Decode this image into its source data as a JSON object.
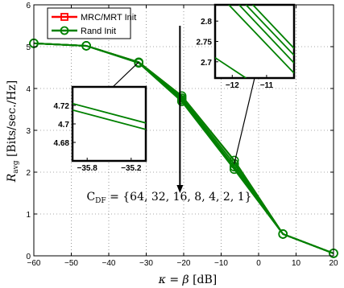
{
  "chart_data": {
    "type": "line",
    "xlabel": "κ = β  [dB]",
    "ylabel": "R_avg  [Bits/sec./Hz]",
    "xlim": [
      -60,
      20
    ],
    "ylim": [
      0,
      6
    ],
    "xticks": [
      -60,
      -50,
      -40,
      -30,
      -20,
      -10,
      0,
      10,
      20
    ],
    "yticks": [
      0,
      1,
      2,
      3,
      4,
      5,
      6
    ],
    "grid": true,
    "legend_position": "top-left",
    "legend": [
      {
        "label": "MRC/MRT Init",
        "color": "#ff0000",
        "marker": "square"
      },
      {
        "label": "Rand Init",
        "color": "#008000",
        "marker": "circle"
      }
    ],
    "x": [
      -60,
      -46,
      -32,
      -20.5,
      -6.5,
      6.5,
      20
    ],
    "series": [
      {
        "name": "MRC/MRT Init",
        "color": "#ff0000",
        "marker": "square",
        "values": [
          5.08,
          5.02,
          4.63,
          3.82,
          2.28,
          0.52,
          0.06
        ]
      },
      {
        "name": "Rand Init",
        "color": "#008000",
        "marker": "circle",
        "values": [
          5.08,
          5.02,
          4.63,
          3.82,
          2.28,
          0.52,
          0.06
        ]
      }
    ],
    "curve_family": {
      "color": "#008000",
      "values": [
        [
          5.08,
          5.02,
          4.63,
          3.82,
          2.28,
          0.52,
          0.06
        ],
        [
          5.08,
          5.02,
          4.62,
          3.77,
          2.2,
          0.52,
          0.06
        ],
        [
          5.08,
          5.02,
          4.62,
          3.73,
          2.13,
          0.52,
          0.06
        ],
        [
          5.08,
          5.02,
          4.61,
          3.69,
          2.07,
          0.52,
          0.06
        ]
      ]
    },
    "annotation": {
      "text": "C_DF = {64, 32, 16, 8, 4, 2, 1}",
      "arrow_from": [
        -21,
        5.5
      ],
      "arrow_to": [
        -21,
        1.5
      ]
    },
    "insets": [
      {
        "xlim": [
          -36,
          -35
        ],
        "ylim": [
          4.66,
          4.74
        ],
        "xticks": [
          -35.8,
          -35.2
        ],
        "xtick_labels": [
          "−35.8",
          "−35.2"
        ],
        "yticks": [
          4.68,
          4.7,
          4.72
        ],
        "ytick_labels": [
          "4.68",
          "4.7",
          "4.72"
        ],
        "lines": [
          {
            "x": [
              -36,
              -35
            ],
            "y": [
              4.722,
              4.701
            ]
          },
          {
            "x": [
              -36,
              -35
            ],
            "y": [
              4.715,
              4.694
            ]
          }
        ],
        "anchor": [
          -32,
          4.63
        ]
      },
      {
        "xlim": [
          -12.5,
          -10.2
        ],
        "ylim": [
          2.66,
          2.84
        ],
        "xticks": [
          -12,
          -11
        ],
        "xtick_labels": [
          "−12",
          "−11"
        ],
        "yticks": [
          2.7,
          2.75,
          2.8
        ],
        "ytick_labels": [
          "2.7",
          "2.75",
          "2.8"
        ],
        "lines": [
          {
            "x": [
              -12.1,
              -10.2
            ],
            "y": [
              2.84,
              2.672
            ]
          },
          {
            "x": [
              -11.8,
              -10.2
            ],
            "y": [
              2.84,
              2.697
            ]
          },
          {
            "x": [
              -11.6,
              -10.2
            ],
            "y": [
              2.84,
              2.716
            ]
          },
          {
            "x": [
              -11.4,
              -10.2
            ],
            "y": [
              2.84,
              2.733
            ]
          },
          {
            "x": [
              -12.5,
              -11.6
            ],
            "y": [
              2.71,
              2.66
            ]
          }
        ],
        "anchor": [
          -6.5,
          2.2
        ]
      }
    ]
  }
}
